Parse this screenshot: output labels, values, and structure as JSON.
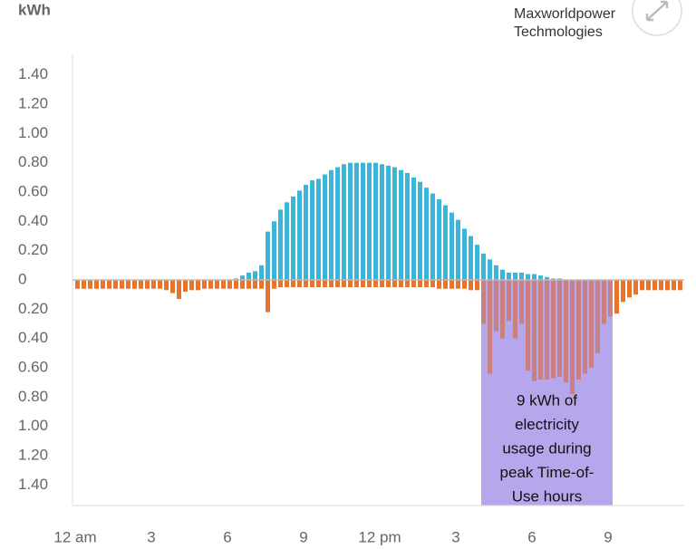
{
  "chart_data": {
    "type": "bar",
    "y_unit": "kWh",
    "brand": [
      "Maxworldpower",
      "Techmologies"
    ],
    "categories": [
      "12 am",
      null,
      null,
      null,
      null,
      null,
      null,
      null,
      null,
      null,
      null,
      null,
      "3",
      null,
      null,
      null,
      null,
      null,
      null,
      null,
      null,
      null,
      null,
      null,
      "6",
      null,
      null,
      null,
      null,
      null,
      null,
      null,
      null,
      null,
      null,
      null,
      "9",
      null,
      null,
      null,
      null,
      null,
      null,
      null,
      null,
      null,
      null,
      null,
      "12 pm",
      null,
      null,
      null,
      null,
      null,
      null,
      null,
      null,
      null,
      null,
      null,
      "3",
      null,
      null,
      null,
      null,
      null,
      null,
      null,
      null,
      null,
      null,
      null,
      "6",
      null,
      null,
      null,
      null,
      null,
      null,
      null,
      null,
      null,
      null,
      null,
      "9",
      null,
      null,
      null,
      null,
      null,
      null,
      null,
      null,
      null,
      null,
      null
    ],
    "series": [
      {
        "color": "#3bb5d8",
        "values": [
          0,
          0,
          0,
          0,
          0,
          0,
          0,
          0,
          0,
          0,
          0,
          0,
          0,
          0,
          0,
          0,
          0,
          0,
          0,
          0,
          0,
          0,
          0,
          0,
          0,
          0.01,
          0.03,
          0.05,
          0.06,
          0.1,
          0.33,
          0.4,
          0.48,
          0.53,
          0.57,
          0.61,
          0.65,
          0.68,
          0.69,
          0.72,
          0.75,
          0.77,
          0.79,
          0.8,
          0.8,
          0.8,
          0.8,
          0.8,
          0.79,
          0.78,
          0.77,
          0.75,
          0.73,
          0.7,
          0.67,
          0.63,
          0.59,
          0.55,
          0.51,
          0.46,
          0.41,
          0.35,
          0.3,
          0.24,
          0.18,
          0.14,
          0.1,
          0.07,
          0.05,
          0.05,
          0.05,
          0.04,
          0.04,
          0.03,
          0.02,
          0.01,
          0.01,
          0,
          0,
          0,
          0,
          0,
          0,
          0,
          0,
          0,
          0,
          0,
          0,
          0,
          0,
          0,
          0,
          0,
          0,
          0
        ]
      },
      {
        "color": "#e8732a",
        "highlight_color": "#c98080",
        "values": [
          -0.06,
          -0.06,
          -0.06,
          -0.06,
          -0.06,
          -0.06,
          -0.06,
          -0.06,
          -0.06,
          -0.06,
          -0.06,
          -0.06,
          -0.06,
          -0.06,
          -0.07,
          -0.09,
          -0.13,
          -0.08,
          -0.07,
          -0.07,
          -0.06,
          -0.06,
          -0.06,
          -0.06,
          -0.06,
          -0.06,
          -0.06,
          -0.06,
          -0.06,
          -0.06,
          -0.22,
          -0.06,
          -0.05,
          -0.05,
          -0.05,
          -0.05,
          -0.05,
          -0.05,
          -0.05,
          -0.05,
          -0.05,
          -0.05,
          -0.05,
          -0.05,
          -0.05,
          -0.05,
          -0.05,
          -0.05,
          -0.05,
          -0.05,
          -0.05,
          -0.05,
          -0.05,
          -0.05,
          -0.05,
          -0.05,
          -0.05,
          -0.06,
          -0.06,
          -0.06,
          -0.06,
          -0.06,
          -0.07,
          -0.07,
          -0.3,
          -0.64,
          -0.35,
          -0.4,
          -0.28,
          -0.4,
          -0.3,
          -0.62,
          -0.69,
          -0.68,
          -0.68,
          -0.67,
          -0.66,
          -0.7,
          -0.78,
          -0.68,
          -0.64,
          -0.6,
          -0.5,
          -0.3,
          -0.25,
          -0.23,
          -0.15,
          -0.12,
          -0.1,
          -0.07,
          -0.07,
          -0.07,
          -0.07,
          -0.07,
          -0.07,
          -0.07
        ]
      }
    ],
    "highlight": {
      "span": [
        64,
        84
      ],
      "color": "#b6a6ec",
      "lines": [
        "9 kWh of",
        "electricity",
        "usage during",
        "peak Time-of-",
        "Use hours"
      ]
    },
    "ylim": [
      -1.54,
      1.54
    ],
    "yticks": [
      {
        "value": 1.4,
        "label": "1.40"
      },
      {
        "value": 1.2,
        "label": "1.20"
      },
      {
        "value": 1.0,
        "label": "1.00"
      },
      {
        "value": 0.8,
        "label": "0.80"
      },
      {
        "value": 0.6,
        "label": "0.60"
      },
      {
        "value": 0.4,
        "label": "0.40"
      },
      {
        "value": 0.2,
        "label": "0.20"
      },
      0,
      {
        "value": -0.2,
        "label": "0.20"
      },
      {
        "value": -0.4,
        "label": "0.40"
      },
      {
        "value": -0.6,
        "label": "0.60"
      },
      {
        "value": -0.8,
        "label": "0.80"
      },
      {
        "value": -1.0,
        "label": "1.00"
      },
      {
        "value": -1.2,
        "label": "1.20"
      },
      {
        "value": -1.4,
        "label": "1.40"
      }
    ]
  }
}
